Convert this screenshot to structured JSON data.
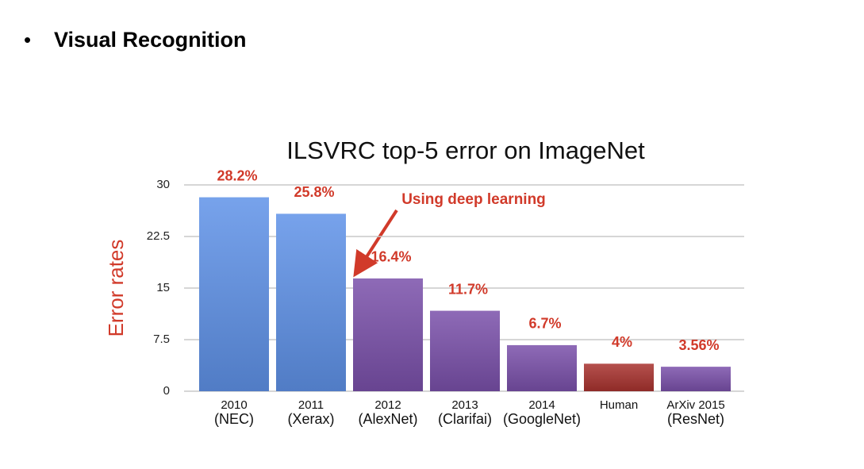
{
  "slide": {
    "bullet": "•",
    "title": "Visual Recognition"
  },
  "chart_data": {
    "type": "bar",
    "title": "ILSVRC top-5 error on ImageNet",
    "y_label": "Error rates",
    "annotation": "Using deep learning",
    "categories": [
      "2010",
      "2011",
      "2012",
      "2013",
      "2014",
      "Human",
      "ArXiv 2015"
    ],
    "category_notes": [
      "(NEC)",
      "(Xerax)",
      "(AlexNet)",
      "(Clarifai)",
      "(GoogleNet)",
      null,
      "(ResNet)"
    ],
    "values": [
      28.2,
      25.8,
      16.4,
      11.7,
      6.7,
      4,
      3.56
    ],
    "value_labels": [
      "28.2%",
      "25.8%",
      "16.4%",
      "11.7%",
      "6.7%",
      "4%",
      "3.56%"
    ],
    "colors": [
      "#5f92e8",
      "#5f92e8",
      "#7a50aa",
      "#7a50aa",
      "#7a50aa",
      "#a8322e",
      "#7a50aa"
    ],
    "ylim": [
      0,
      30
    ],
    "yticks": [
      0,
      7.5,
      15,
      22.5,
      30
    ],
    "grid": true
  }
}
